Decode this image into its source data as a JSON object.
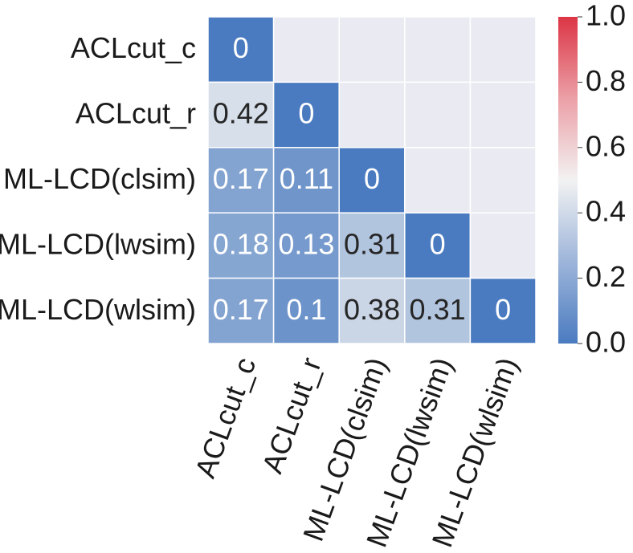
{
  "chart_data": {
    "type": "heatmap",
    "rows": [
      "ACLcut_c",
      "ACLcut_r",
      "ML-LCD(clsim)",
      "ML-LCD(lwsim)",
      "ML-LCD(wlsim)"
    ],
    "columns": [
      "ACLcut_c",
      "ACLcut_r",
      "ML-LCD(clsim)",
      "ML-LCD(lwsim)",
      "ML-LCD(wlsim)"
    ],
    "values": [
      [
        0,
        null,
        null,
        null,
        null
      ],
      [
        0.42,
        0,
        null,
        null,
        null
      ],
      [
        0.17,
        0.11,
        0,
        null,
        null
      ],
      [
        0.18,
        0.13,
        0.31,
        0,
        null
      ],
      [
        0.17,
        0.1,
        0.38,
        0.31,
        0
      ]
    ],
    "cell_labels": [
      [
        "0",
        "",
        "",
        "",
        ""
      ],
      [
        "0.42",
        "0",
        "",
        "",
        ""
      ],
      [
        "0.17",
        "0.11",
        "0",
        "",
        ""
      ],
      [
        "0.18",
        "0.13",
        "0.31",
        "0",
        ""
      ],
      [
        "0.17",
        "0.1",
        "0.38",
        "0.31",
        "0"
      ]
    ],
    "mask": "upper-triangle",
    "colorbar": {
      "range": [
        0.0,
        1.0
      ],
      "ticks": [
        "0.0",
        "0.2",
        "0.4",
        "0.6",
        "0.8",
        "1.0"
      ],
      "colormap": "diverging blue-white-red",
      "colors": {
        "low": "#4a7bc0",
        "mid": "#f2f2f2",
        "high": "#dc3545"
      }
    },
    "masked_color": "#eaeaf2",
    "grid_line_color": "#ffffff",
    "xtick_rotation": "rotated ~70° counter-clockwise",
    "legend_position": "right"
  }
}
